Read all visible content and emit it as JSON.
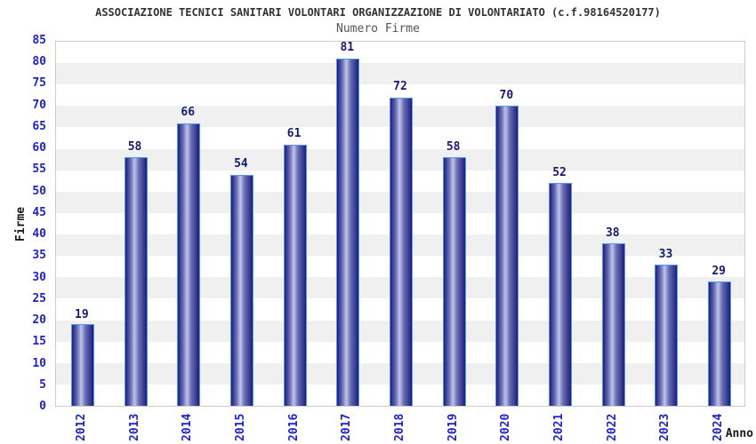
{
  "chart_data": {
    "type": "bar",
    "title": "ASSOCIAZIONE TECNICI SANITARI VOLONTARI ORGANIZZAZIONE DI VOLONTARIATO (c.f.98164520177)",
    "subtitle": "Numero Firme",
    "xlabel": "Anno",
    "ylabel": "Firme",
    "categories": [
      "2012",
      "2013",
      "2014",
      "2015",
      "2016",
      "2017",
      "2018",
      "2019",
      "2020",
      "2021",
      "2022",
      "2023",
      "2024"
    ],
    "values": [
      19,
      58,
      66,
      54,
      61,
      81,
      72,
      58,
      70,
      52,
      38,
      33,
      29
    ],
    "ylim": [
      0,
      85
    ],
    "ytick_step": 5,
    "yticks": [
      0,
      5,
      10,
      15,
      20,
      25,
      30,
      35,
      40,
      45,
      50,
      55,
      60,
      65,
      70,
      75,
      80,
      85
    ],
    "grid": "horizontal-alternating-bands",
    "legend": "none",
    "bar_labels_shown": true,
    "colors": {
      "tick_label": "#2222cc",
      "value_label": "#191970",
      "bar_gradient_dark": "#1e1e78",
      "bar_gradient_mid": "#6a6fb5",
      "bar_gradient_light": "#c0c4ea",
      "bar_border": "#4f97f7",
      "band_light": "#ffffff",
      "band_shade": "#f0f0f0",
      "plot_border": "#cccccc",
      "title": "#333333",
      "subtitle": "#555555",
      "axis_title": "#1a1a1a"
    }
  }
}
